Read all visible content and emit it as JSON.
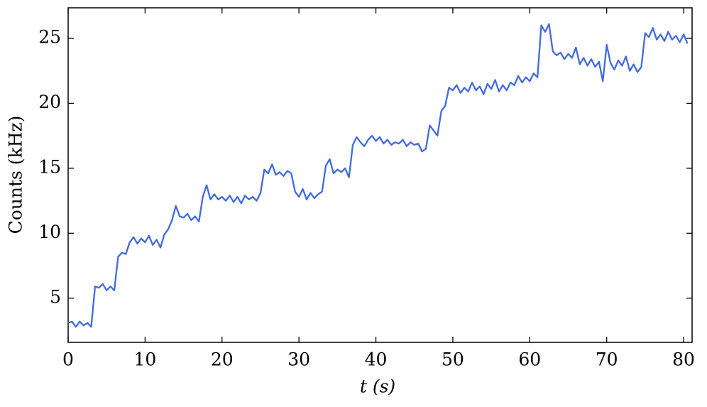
{
  "chart_data": {
    "type": "line",
    "x_label": "t (s)",
    "y_label": "Counts (kHz)",
    "x": [
      0,
      0.5,
      1,
      1.5,
      2,
      2.5,
      3,
      3.5,
      4,
      4.5,
      5,
      5.5,
      6,
      6.5,
      7,
      7.5,
      8,
      8.5,
      9,
      9.5,
      10,
      10.5,
      11,
      11.5,
      12,
      12.5,
      13,
      13.5,
      14,
      14.5,
      15,
      15.5,
      16,
      16.5,
      17,
      17.5,
      18,
      18.5,
      19,
      19.5,
      20,
      20.5,
      21,
      21.5,
      22,
      22.5,
      23,
      23.5,
      24,
      24.5,
      25,
      25.5,
      26,
      26.5,
      27,
      27.5,
      28,
      28.5,
      29,
      29.5,
      30,
      30.5,
      31,
      31.5,
      32,
      32.5,
      33,
      33.5,
      34,
      34.5,
      35,
      35.5,
      36,
      36.5,
      37,
      37.5,
      38,
      38.5,
      39,
      39.5,
      40,
      40.5,
      41,
      41.5,
      42,
      42.5,
      43,
      43.5,
      44,
      44.5,
      45,
      45.5,
      46,
      46.5,
      47,
      47.5,
      48,
      48.5,
      49,
      49.5,
      50,
      50.5,
      51,
      51.5,
      52,
      52.5,
      53,
      53.5,
      54,
      54.5,
      55,
      55.5,
      56,
      56.5,
      57,
      57.5,
      58,
      58.5,
      59,
      59.5,
      60,
      60.5,
      61,
      61.5,
      62,
      62.5,
      63,
      63.5,
      64,
      64.5,
      65,
      65.5,
      66,
      66.5,
      67,
      67.5,
      68,
      68.5,
      69,
      69.5,
      70,
      70.5,
      71,
      71.5,
      72,
      72.5,
      73,
      73.5,
      74,
      74.5,
      75,
      75.5,
      76,
      76.5,
      77,
      77.5,
      78,
      78.5,
      79,
      79.5,
      80,
      80.5
    ],
    "series": [
      {
        "color": "#4169e1",
        "values": [
          3.1,
          3.2,
          2.8,
          3.2,
          2.9,
          3.1,
          2.8,
          5.9,
          5.8,
          6.1,
          5.6,
          5.9,
          5.6,
          8.2,
          8.5,
          8.4,
          9.3,
          9.7,
          9.2,
          9.6,
          9.3,
          9.8,
          9.1,
          9.5,
          8.9,
          9.9,
          10.3,
          11.0,
          12.1,
          11.3,
          11.2,
          11.5,
          11.0,
          11.3,
          10.9,
          12.8,
          13.7,
          12.6,
          13.0,
          12.6,
          12.8,
          12.5,
          12.9,
          12.4,
          12.8,
          12.3,
          12.9,
          12.6,
          12.8,
          12.5,
          13.1,
          14.9,
          14.6,
          15.3,
          14.5,
          14.7,
          14.4,
          14.8,
          14.6,
          13.2,
          12.8,
          13.4,
          12.6,
          13.1,
          12.7,
          13.0,
          13.2,
          15.2,
          15.7,
          14.6,
          14.9,
          14.7,
          15.0,
          14.3,
          16.8,
          17.4,
          17.0,
          16.7,
          17.2,
          17.5,
          17.1,
          17.4,
          16.9,
          17.2,
          16.8,
          17.0,
          16.9,
          17.2,
          16.7,
          17.0,
          16.8,
          16.9,
          16.3,
          16.5,
          18.3,
          17.9,
          17.5,
          19.4,
          19.8,
          21.2,
          21.0,
          21.4,
          20.8,
          21.2,
          20.9,
          21.6,
          21.0,
          21.3,
          20.7,
          21.5,
          21.1,
          21.8,
          20.9,
          21.4,
          21.0,
          21.6,
          21.4,
          22.1,
          21.6,
          22.0,
          21.7,
          22.3,
          22.0,
          26.0,
          25.5,
          26.1,
          24.0,
          23.7,
          23.9,
          23.4,
          23.8,
          23.5,
          24.3,
          23.0,
          23.5,
          22.9,
          23.4,
          22.8,
          23.2,
          21.7,
          24.5,
          23.1,
          22.6,
          23.3,
          22.9,
          23.6,
          22.5,
          23.0,
          22.4,
          22.8,
          25.4,
          25.1,
          25.8,
          24.9,
          25.3,
          24.8,
          25.5,
          24.9,
          25.2,
          24.7,
          25.3,
          24.6
        ]
      }
    ],
    "xlim": [
      0,
      81.1
    ],
    "ylim": [
      1.6,
      27.35
    ],
    "xticks": [
      0,
      10,
      20,
      30,
      40,
      50,
      60,
      70,
      80
    ],
    "yticks": [
      5,
      10,
      15,
      20,
      25
    ]
  }
}
